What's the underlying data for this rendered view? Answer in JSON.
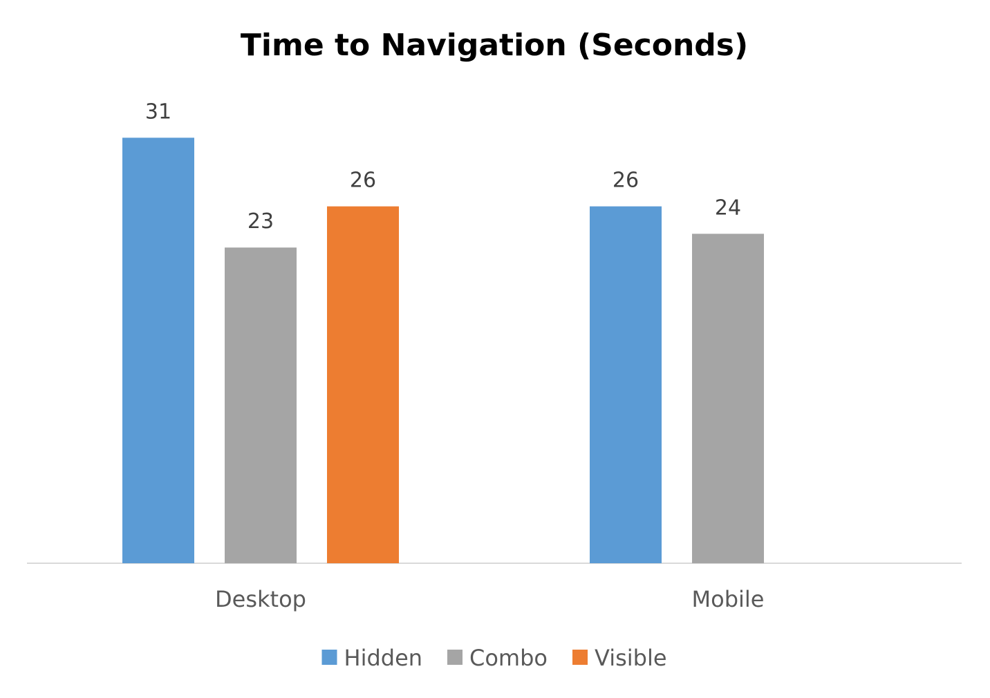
{
  "chart_data": {
    "type": "bar",
    "title": "Time to Navigation (Seconds)",
    "xlabel": "",
    "ylabel": "",
    "categories": [
      "Desktop",
      "Mobile"
    ],
    "series": [
      {
        "name": "Hidden",
        "color": "#5B9BD5",
        "values": [
          31,
          26
        ]
      },
      {
        "name": "Combo",
        "color": "#A5A5A5",
        "values": [
          23,
          24
        ]
      },
      {
        "name": "Visible",
        "color": "#ED7D31",
        "values": [
          26,
          null
        ]
      }
    ],
    "ylim": [
      0,
      36
    ],
    "grid": false,
    "axis_color": "#D9D9D9",
    "legend_position": "bottom",
    "data_labels": true
  }
}
